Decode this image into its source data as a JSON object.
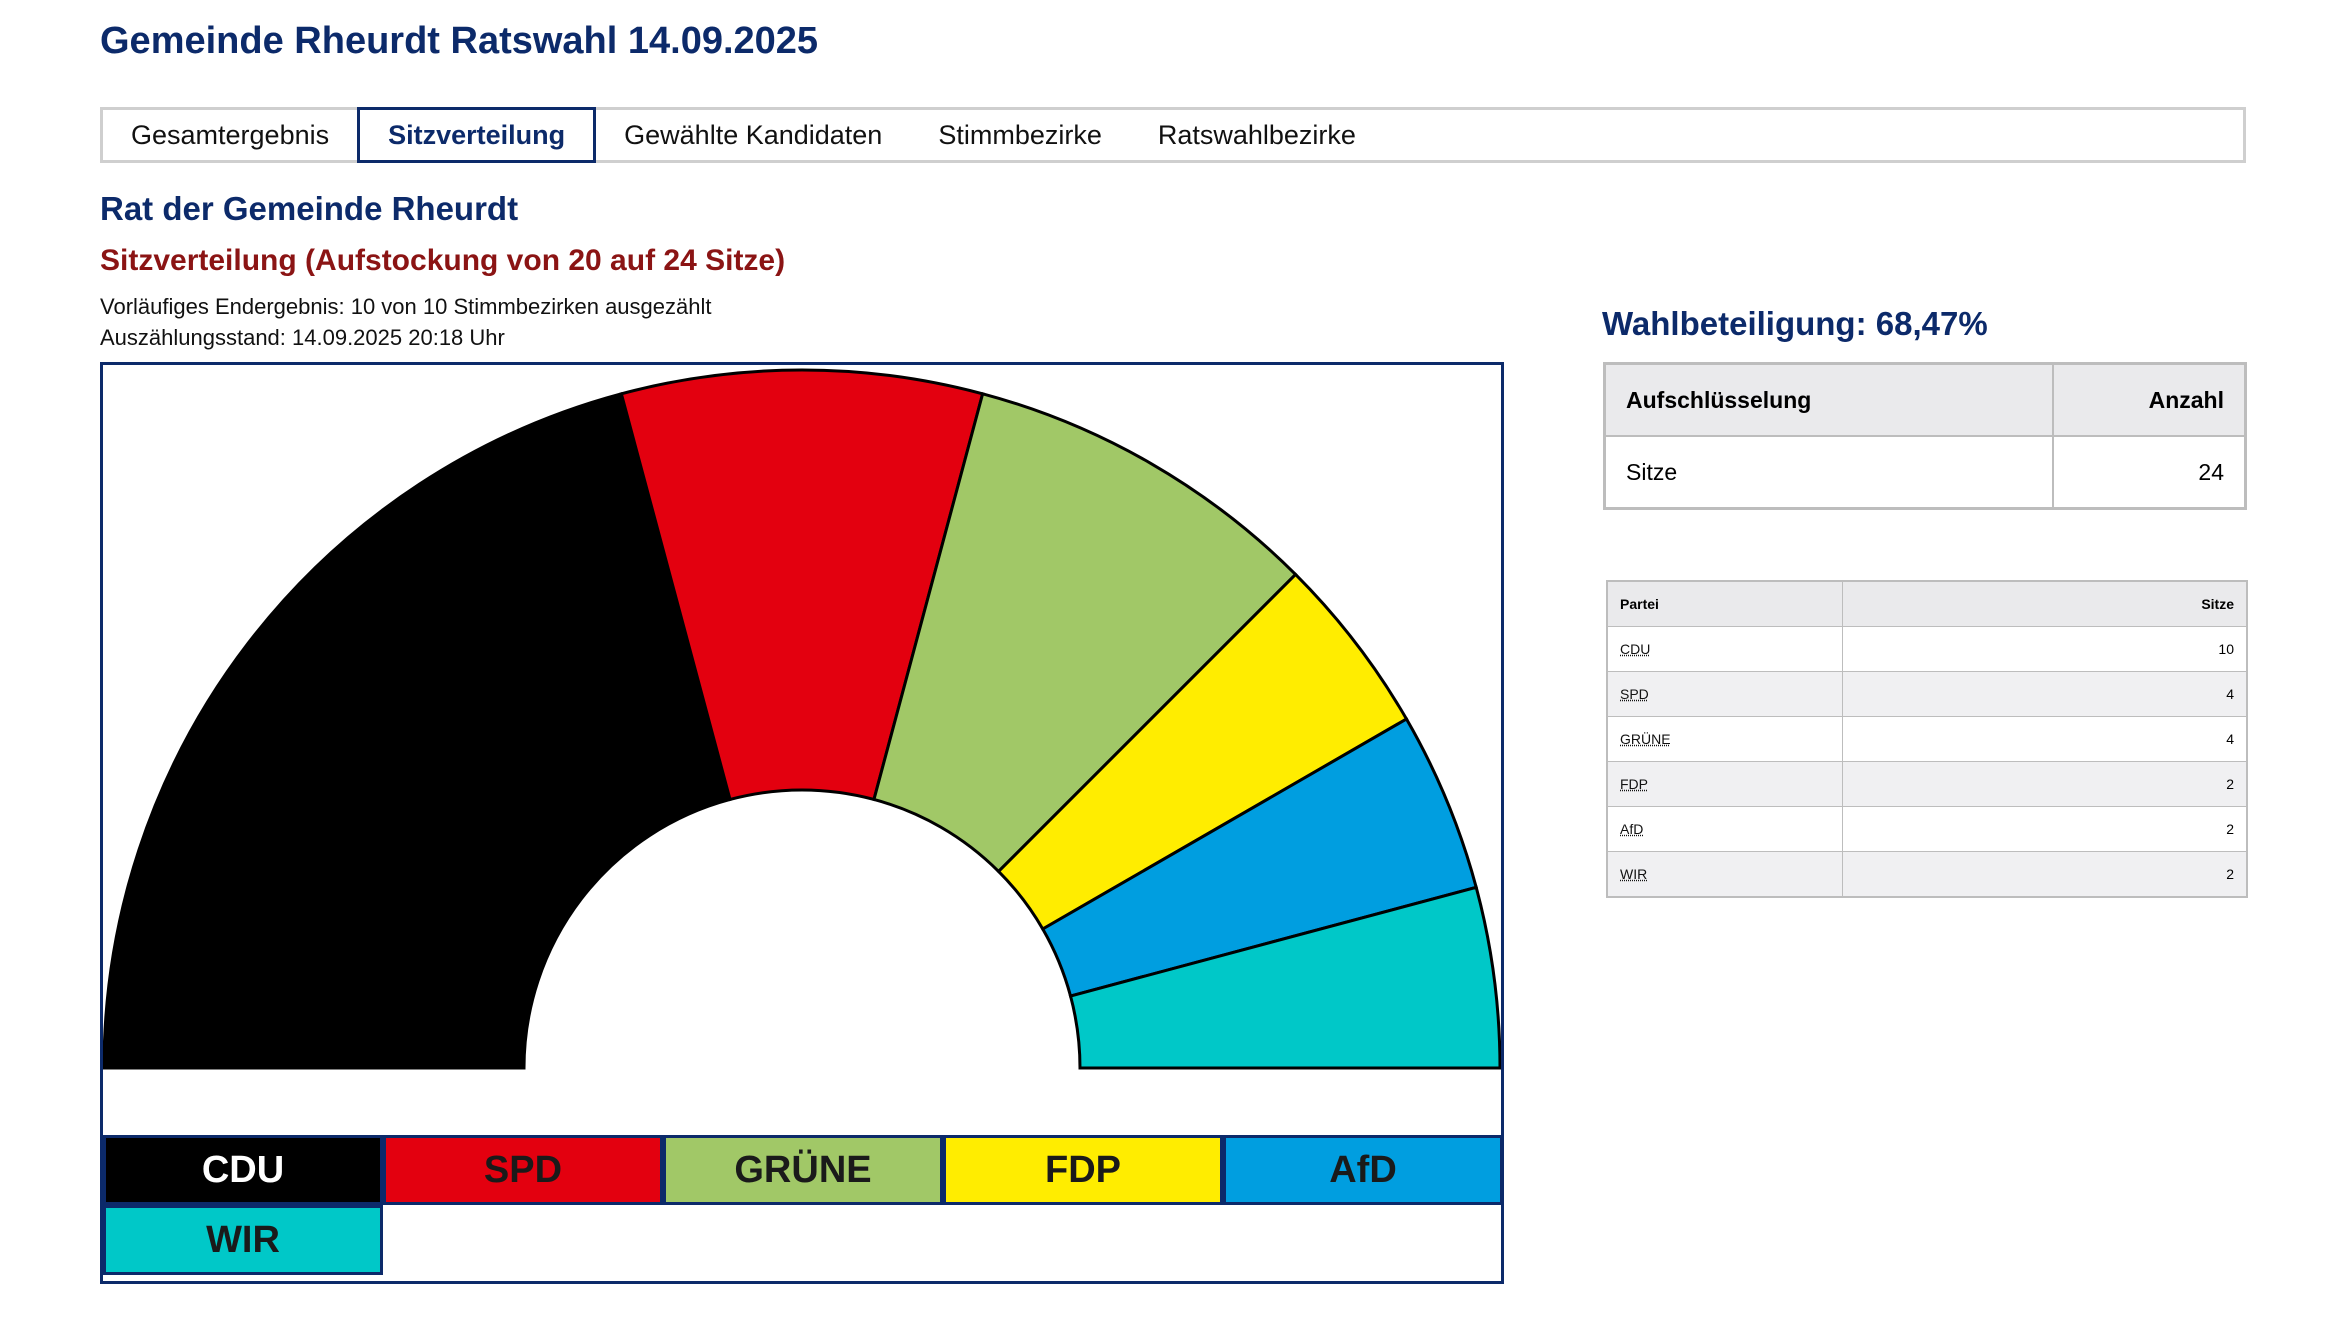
{
  "page_title": "Gemeinde Rheurdt Ratswahl 14.09.2025",
  "tabs": [
    {
      "label": "Gesamtergebnis",
      "active": false
    },
    {
      "label": "Sitzverteilung",
      "active": true
    },
    {
      "label": "Gewählte Kandidaten",
      "active": false
    },
    {
      "label": "Stimmbezirke",
      "active": false
    },
    {
      "label": "Ratswahlbezirke",
      "active": false
    }
  ],
  "subtitle": "Rat der Gemeinde Rheurdt",
  "seat_title": "Sitzverteilung (Aufstockung von 20 auf 24 Sitze)",
  "status_lines": [
    "Vorläufiges Endergebnis: 10 von 10 Stimmbezirken ausgezählt",
    "Auszählungsstand: 14.09.2025 20:18 Uhr"
  ],
  "turnout": "Wahlbeteiligung: 68,47%",
  "summary_table": {
    "headers": [
      "Aufschlüsselung",
      "Anzahl"
    ],
    "rows": [
      [
        "Sitze",
        "24"
      ]
    ]
  },
  "party_table": {
    "headers": [
      "Partei",
      "Sitze"
    ],
    "rows": [
      [
        "CDU",
        "10"
      ],
      [
        "SPD",
        "4"
      ],
      [
        "GRÜNE",
        "4"
      ],
      [
        "FDP",
        "2"
      ],
      [
        "AfD",
        "2"
      ],
      [
        "WIR",
        "2"
      ]
    ]
  },
  "chart_data": {
    "type": "pie",
    "variant": "half-donut",
    "title": "",
    "total": 24,
    "series": [
      {
        "name": "CDU",
        "value": 10,
        "color": "#000000",
        "text_color": "#ffffff"
      },
      {
        "name": "SPD",
        "value": 4,
        "color": "#e3000f",
        "text_color": "#1a1a1a"
      },
      {
        "name": "GRÜNE",
        "value": 4,
        "color": "#a1c867",
        "text_color": "#1a1a1a"
      },
      {
        "name": "FDP",
        "value": 2,
        "color": "#ffed00",
        "text_color": "#1a1a1a"
      },
      {
        "name": "AfD",
        "value": 2,
        "color": "#009ee0",
        "text_color": "#1a1a1a"
      },
      {
        "name": "WIR",
        "value": 2,
        "color": "#00c8c8",
        "text_color": "#1a1a1a"
      }
    ]
  }
}
